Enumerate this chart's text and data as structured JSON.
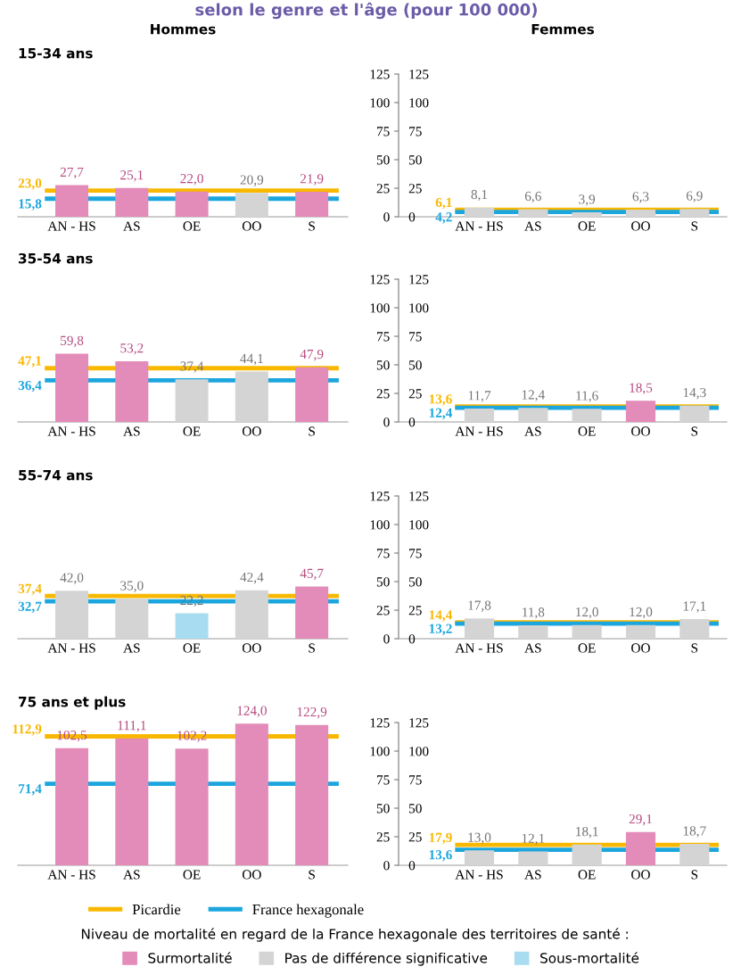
{
  "chart_data": [
    {
      "type": "bar",
      "title": "15-34 ans",
      "subtitle": "Hommes",
      "annotations": [
        "selon le genre et l'âge (pour 100 000)"
      ],
      "categories": [
        "AN - HS",
        "AS",
        "OE",
        "OO",
        "S"
      ],
      "ylim": [
        0,
        125
      ],
      "tick_labels": "x",
      "series": [
        {
          "values": [
            27.7,
            25.1,
            22.0,
            20.9,
            21.9
          ],
          "colors": [
            "#e38bb9",
            "#e38bb9",
            "#e38bb9",
            "#d4d4d4",
            "#e38bb9"
          ],
          "value_labels": [
            "27,7",
            "25,1",
            "22,0",
            "20,9",
            "21,9"
          ]
        }
      ],
      "ref_lines": [
        {
          "axis": "y",
          "value": 23.0,
          "label": "23,0",
          "color": "#f9b800"
        },
        {
          "axis": "y",
          "value": 15.8,
          "label": "15,8",
          "color": "#1ba6de"
        }
      ]
    },
    {
      "type": "bar",
      "subtitle": "Femmes",
      "categories": [
        "AN - HS",
        "AS",
        "OE",
        "OO",
        "S"
      ],
      "ylim": [
        0,
        125
      ],
      "yticks": [
        0,
        25,
        50,
        75,
        100,
        125
      ],
      "y2lim": [
        0,
        125
      ],
      "y2ticks": [
        0,
        25,
        50,
        75,
        100,
        125
      ],
      "series": [
        {
          "values": [
            8.1,
            6.6,
            3.9,
            6.3,
            6.9
          ],
          "colors": [
            "#d4d4d4",
            "#d4d4d4",
            "#d4d4d4",
            "#d4d4d4",
            "#d4d4d4"
          ],
          "value_labels": [
            "8,1",
            "6,6",
            "3,9",
            "6,3",
            "6,9"
          ]
        }
      ],
      "ref_lines": [
        {
          "axis": "y",
          "value": 6.1,
          "label": "6,1",
          "color": "#f9b800"
        },
        {
          "axis": "y",
          "value": 4.2,
          "label": "4,2",
          "color": "#1ba6de"
        }
      ]
    },
    {
      "type": "bar",
      "title": "35-54 ans",
      "categories": [
        "AN - HS",
        "AS",
        "OE",
        "OO",
        "S"
      ],
      "ylim": [
        0,
        125
      ],
      "tick_labels": "x",
      "series": [
        {
          "values": [
            59.8,
            53.2,
            37.4,
            44.1,
            47.9
          ],
          "colors": [
            "#e38bb9",
            "#e38bb9",
            "#d4d4d4",
            "#d4d4d4",
            "#e38bb9"
          ],
          "value_labels": [
            "59,8",
            "53,2",
            "37,4",
            "44,1",
            "47,9"
          ]
        }
      ],
      "ref_lines": [
        {
          "axis": "y",
          "value": 47.1,
          "label": "47,1",
          "color": "#f9b800"
        },
        {
          "axis": "y",
          "value": 36.4,
          "label": "36,4",
          "color": "#1ba6de"
        }
      ]
    },
    {
      "type": "bar",
      "categories": [
        "AN - HS",
        "AS",
        "OE",
        "OO",
        "S"
      ],
      "ylim": [
        0,
        125
      ],
      "yticks": [
        0,
        25,
        50,
        75,
        100,
        125
      ],
      "y2lim": [
        0,
        125
      ],
      "y2ticks": [
        0,
        25,
        50,
        75,
        100,
        125
      ],
      "series": [
        {
          "values": [
            11.7,
            12.4,
            11.6,
            18.5,
            14.3
          ],
          "colors": [
            "#d4d4d4",
            "#d4d4d4",
            "#d4d4d4",
            "#e38bb9",
            "#d4d4d4"
          ],
          "value_labels": [
            "11,7",
            "12,4",
            "11,6",
            "18,5",
            "14,3"
          ]
        }
      ],
      "ref_lines": [
        {
          "axis": "y",
          "value": 13.6,
          "label": "13,6",
          "color": "#f9b800"
        },
        {
          "axis": "y",
          "value": 12.4,
          "label": "12,4",
          "color": "#1ba6de"
        }
      ]
    },
    {
      "type": "bar",
      "title": "55-74 ans",
      "categories": [
        "AN - HS",
        "AS",
        "OE",
        "OO",
        "S"
      ],
      "ylim": [
        0,
        125
      ],
      "tick_labels": "x",
      "series": [
        {
          "values": [
            42.0,
            35.0,
            22.2,
            42.4,
            45.7
          ],
          "colors": [
            "#d4d4d4",
            "#d4d4d4",
            "#a8dcf0",
            "#d4d4d4",
            "#e38bb9"
          ],
          "value_labels": [
            "42,0",
            "35,0",
            "22,2",
            "42,4",
            "45,7"
          ]
        }
      ],
      "ref_lines": [
        {
          "axis": "y",
          "value": 37.4,
          "label": "37,4",
          "color": "#f9b800"
        },
        {
          "axis": "y",
          "value": 32.7,
          "label": "32,7",
          "color": "#1ba6de"
        }
      ]
    },
    {
      "type": "bar",
      "categories": [
        "AN - HS",
        "AS",
        "OE",
        "OO",
        "S"
      ],
      "ylim": [
        0,
        125
      ],
      "yticks": [
        0,
        25,
        50,
        75,
        100,
        125
      ],
      "y2lim": [
        0,
        125
      ],
      "y2ticks": [
        0,
        25,
        50,
        75,
        100,
        125
      ],
      "series": [
        {
          "values": [
            17.8,
            11.8,
            12.0,
            12.0,
            17.1
          ],
          "colors": [
            "#d4d4d4",
            "#d4d4d4",
            "#d4d4d4",
            "#d4d4d4",
            "#d4d4d4"
          ],
          "value_labels": [
            "17,8",
            "11,8",
            "12,0",
            "12,0",
            "17,1"
          ]
        }
      ],
      "ref_lines": [
        {
          "axis": "y",
          "value": 14.4,
          "label": "14,4",
          "color": "#f9b800"
        },
        {
          "axis": "y",
          "value": 13.2,
          "label": "13,2",
          "color": "#1ba6de"
        }
      ]
    },
    {
      "type": "bar",
      "title": "75 ans et plus",
      "categories": [
        "AN - HS",
        "AS",
        "OE",
        "OO",
        "S"
      ],
      "ylim": [
        0,
        125
      ],
      "tick_labels": "x",
      "series": [
        {
          "values": [
            102.5,
            111.1,
            102.2,
            124.0,
            122.9
          ],
          "colors": [
            "#e38bb9",
            "#e38bb9",
            "#e38bb9",
            "#e38bb9",
            "#e38bb9"
          ],
          "value_labels": [
            "102,5",
            "111,1",
            "102,2",
            "124,0",
            "122,9"
          ]
        }
      ],
      "ref_lines": [
        {
          "axis": "y",
          "value": 112.9,
          "label": "112,9",
          "color": "#f9b800"
        },
        {
          "axis": "y",
          "value": 71.4,
          "label": "71,4",
          "color": "#1ba6de"
        }
      ]
    },
    {
      "type": "bar",
      "categories": [
        "AN - HS",
        "AS",
        "OE",
        "OO",
        "S"
      ],
      "ylim": [
        0,
        125
      ],
      "yticks": [
        0,
        25,
        50,
        75,
        100,
        125
      ],
      "y2lim": [
        0,
        125
      ],
      "y2ticks": [
        0,
        25,
        50,
        75,
        100,
        125
      ],
      "legend": "bottom",
      "annotations": [
        "Niveau de mortalité en regard de la France hexagonale des territoires de santé :"
      ],
      "series": [
        {
          "values": [
            13.0,
            12.1,
            18.1,
            29.1,
            18.7
          ],
          "colors": [
            "#d4d4d4",
            "#d4d4d4",
            "#d4d4d4",
            "#e38bb9",
            "#d4d4d4"
          ],
          "value_labels": [
            "13,0",
            "12,1",
            "18,1",
            "29,1",
            "18,7"
          ]
        },
        {
          "type": "line",
          "name": "Picardie",
          "color": "#f9b800",
          "values": [
            null,
            null,
            null,
            null,
            null
          ]
        },
        {
          "type": "line",
          "name": "France hexagonale",
          "color": "#1ba6de",
          "values": [
            null,
            null,
            null,
            null,
            null
          ]
        },
        {
          "name": "Surmortalité",
          "color": "#e38bb9",
          "values": [
            null,
            null,
            null,
            null,
            null
          ]
        },
        {
          "name": "Pas de différence significative",
          "color": "#d4d4d4",
          "values": [
            null,
            null,
            null,
            null,
            null
          ]
        },
        {
          "name": "Sous-mortalité",
          "color": "#a8dcf0",
          "values": [
            null,
            null,
            null,
            null,
            null
          ]
        }
      ],
      "ref_lines": [
        {
          "axis": "y",
          "value": 17.9,
          "label": "17,9",
          "color": "#f9b800"
        },
        {
          "axis": "y",
          "value": 13.6,
          "label": "13,6",
          "color": "#1ba6de"
        }
      ]
    }
  ]
}
